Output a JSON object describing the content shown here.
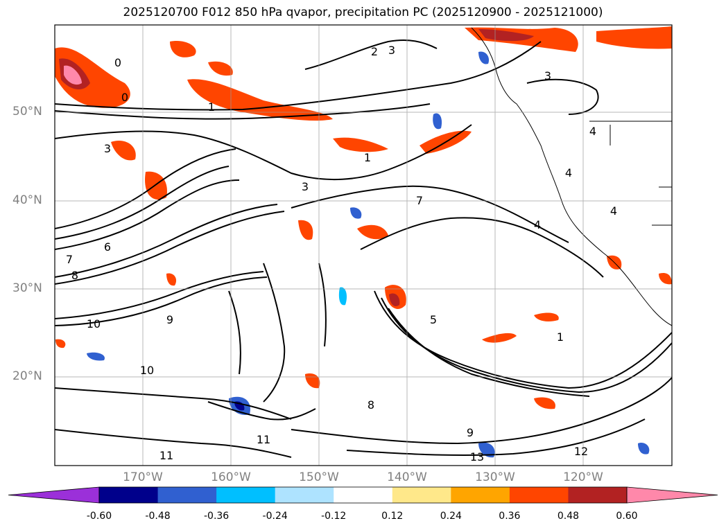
{
  "title": "2025120700 F012 850 hPa qvapor, precipitation PC (2025120900 - 2025121000)",
  "map": {
    "lat_labels": [
      "50°N",
      "40°N",
      "30°N",
      "20°N"
    ],
    "lon_labels": [
      "170°W",
      "160°W",
      "150°W",
      "140°W",
      "130°W",
      "120°W"
    ],
    "contour_labels": [
      "0",
      "0",
      "1",
      "2",
      "3",
      "3",
      "3",
      "3",
      "1",
      "7",
      "4",
      "4",
      "4",
      "4",
      "5",
      "6",
      "7",
      "8",
      "9",
      "10",
      "10",
      "11",
      "11",
      "12",
      "13",
      "1",
      "9",
      "8"
    ]
  },
  "colorbar": {
    "ticks": [
      "-0.60",
      "-0.48",
      "-0.36",
      "-0.24",
      "-0.12",
      "0.12",
      "0.24",
      "0.36",
      "0.48",
      "0.60"
    ],
    "colors": [
      "#9b30d9",
      "#00008b",
      "#3060d0",
      "#00bfff",
      "#aee3ff",
      "#ffffff",
      "#ffe88a",
      "#ffa500",
      "#ff4500",
      "#b22222",
      "#ff88aa"
    ]
  }
}
